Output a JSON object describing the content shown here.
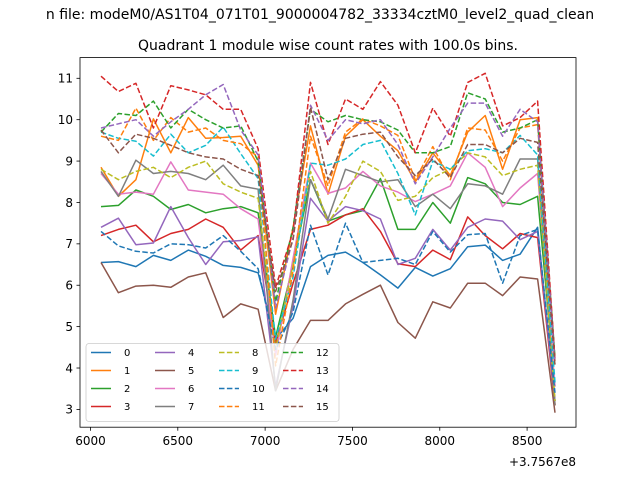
{
  "chart_data": {
    "type": "line",
    "suptitle": "n file: modeM0/AS1T04_071T01_9000004782_33334cztM0_level2_quad_clean",
    "title": "Quadrant 1 module wise count rates with 100.0s bins.",
    "xlabel": "",
    "ylabel": "",
    "x_offset_label": "+3.7567e8",
    "xlim": [
      5940,
      8780
    ],
    "ylim": [
      2.57,
      11.5
    ],
    "xticks": [
      6000,
      6500,
      7000,
      7500,
      8000,
      8500
    ],
    "yticks": [
      3,
      4,
      5,
      6,
      7,
      8,
      9,
      10,
      11
    ],
    "grid": false,
    "legend": {
      "placement": "lower-left",
      "ncol": 4
    },
    "x": [
      6060,
      6160,
      6260,
      6360,
      6460,
      6560,
      6660,
      6760,
      6860,
      6960,
      7060,
      7160,
      7260,
      7360,
      7460,
      7560,
      7660,
      7760,
      7860,
      7960,
      8060,
      8160,
      8260,
      8360,
      8460,
      8560,
      8660
    ],
    "series": [
      {
        "name": "0",
        "color": "#1f77b4",
        "dash": "solid",
        "values": [
          6.55,
          6.57,
          6.45,
          6.72,
          6.6,
          6.85,
          6.7,
          6.48,
          6.43,
          6.3,
          4.7,
          5.2,
          6.45,
          6.72,
          6.8,
          6.55,
          6.25,
          5.93,
          6.43,
          6.22,
          6.4,
          6.93,
          6.97,
          6.6,
          6.75,
          7.4,
          3.2
        ]
      },
      {
        "name": "1",
        "color": "#ff7f0e",
        "dash": "solid",
        "values": [
          8.85,
          8.15,
          8.55,
          10.02,
          9.2,
          10.05,
          9.55,
          9.57,
          9.6,
          8.9,
          5.3,
          7.4,
          9.85,
          8.2,
          9.6,
          10.0,
          9.6,
          9.25,
          8.5,
          9.2,
          8.65,
          9.7,
          10.1,
          8.8,
          10.0,
          10.05,
          3.1
        ]
      },
      {
        "name": "2",
        "color": "#2ca02c",
        "dash": "solid",
        "values": [
          7.9,
          7.93,
          8.3,
          8.15,
          7.83,
          7.95,
          7.75,
          7.85,
          7.9,
          7.75,
          4.75,
          6.5,
          8.55,
          7.55,
          7.7,
          7.8,
          8.58,
          7.35,
          7.35,
          8.0,
          7.5,
          8.6,
          8.45,
          8.0,
          7.95,
          8.15,
          3.55
        ]
      },
      {
        "name": "3",
        "color": "#d62728",
        "dash": "solid",
        "values": [
          7.2,
          7.35,
          7.45,
          7.05,
          7.25,
          7.35,
          7.6,
          7.4,
          6.85,
          7.2,
          4.6,
          6.05,
          7.35,
          7.45,
          7.7,
          7.85,
          7.3,
          6.52,
          6.45,
          6.85,
          6.62,
          7.65,
          7.2,
          6.88,
          7.25,
          7.15,
          3.1
        ]
      },
      {
        "name": "4",
        "color": "#9467bd",
        "dash": "solid",
        "values": [
          7.4,
          7.62,
          6.98,
          7.02,
          7.9,
          7.15,
          6.5,
          7.05,
          7.08,
          7.17,
          3.55,
          5.5,
          8.1,
          7.55,
          7.9,
          7.8,
          7.6,
          6.5,
          6.65,
          7.35,
          6.85,
          7.4,
          7.6,
          7.55,
          7.1,
          7.3,
          3.2
        ]
      },
      {
        "name": "5",
        "color": "#8c564b",
        "dash": "solid",
        "values": [
          6.55,
          5.82,
          5.98,
          6.0,
          5.95,
          6.2,
          6.3,
          5.22,
          5.55,
          5.42,
          3.45,
          4.45,
          5.15,
          5.15,
          5.55,
          5.78,
          6.0,
          5.1,
          4.72,
          5.6,
          5.45,
          6.05,
          6.05,
          5.75,
          6.2,
          6.15,
          2.92
        ]
      },
      {
        "name": "6",
        "color": "#e377c2",
        "dash": "solid",
        "values": [
          8.7,
          8.2,
          8.25,
          8.2,
          8.98,
          8.3,
          8.25,
          8.2,
          7.85,
          7.6,
          4.3,
          6.65,
          8.95,
          8.22,
          8.35,
          8.75,
          8.4,
          8.25,
          8.02,
          8.2,
          8.4,
          9.2,
          8.85,
          7.9,
          8.35,
          8.7,
          3.55
        ]
      },
      {
        "name": "7",
        "color": "#7f7f7f",
        "dash": "solid",
        "values": [
          8.75,
          8.15,
          9.02,
          8.7,
          8.75,
          8.7,
          8.55,
          8.9,
          8.4,
          8.32,
          3.45,
          5.65,
          8.55,
          7.6,
          8.8,
          8.65,
          8.5,
          8.55,
          7.9,
          8.2,
          7.85,
          8.45,
          8.4,
          8.2,
          9.05,
          9.05,
          3.1
        ]
      },
      {
        "name": "8",
        "color": "#bcbd22",
        "dash": "dashed",
        "values": [
          8.8,
          8.55,
          8.75,
          8.85,
          8.6,
          8.85,
          9.0,
          8.45,
          8.25,
          8.1,
          4.45,
          6.5,
          8.75,
          7.5,
          8.15,
          9.0,
          8.75,
          8.05,
          8.15,
          8.6,
          8.8,
          9.2,
          9.1,
          8.65,
          8.8,
          8.9,
          3.2
        ]
      },
      {
        "name": "9",
        "color": "#17becf",
        "dash": "dashed",
        "values": [
          9.7,
          9.55,
          9.48,
          9.12,
          9.65,
          9.2,
          9.38,
          9.82,
          9.18,
          8.58,
          4.7,
          6.2,
          8.95,
          8.9,
          9.05,
          9.4,
          9.5,
          8.7,
          7.7,
          9.0,
          8.8,
          9.25,
          9.3,
          9.2,
          9.62,
          9.15,
          3.65
        ]
      },
      {
        "name": "10",
        "color": "#1f77b4",
        "dash": "dashed",
        "values": [
          7.3,
          6.95,
          6.82,
          6.78,
          7.0,
          6.98,
          6.9,
          7.2,
          6.82,
          6.4,
          4.45,
          5.35,
          7.45,
          6.25,
          7.5,
          6.55,
          6.6,
          6.65,
          6.5,
          7.3,
          6.8,
          7.22,
          7.25,
          6.05,
          7.2,
          7.35,
          3.4
        ]
      },
      {
        "name": "11",
        "color": "#ff7f0e",
        "dash": "dashed",
        "values": [
          9.6,
          9.5,
          10.28,
          9.5,
          10.05,
          9.7,
          9.8,
          9.5,
          9.42,
          9.1,
          4.05,
          6.35,
          9.6,
          8.4,
          9.7,
          10.02,
          9.85,
          9.62,
          8.55,
          9.35,
          8.55,
          9.8,
          9.75,
          9.0,
          9.8,
          9.88,
          4.15
        ]
      },
      {
        "name": "12",
        "color": "#2ca02c",
        "dash": "dashed",
        "values": [
          9.7,
          10.15,
          10.1,
          10.45,
          9.8,
          10.25,
          10.0,
          9.8,
          9.85,
          9.0,
          5.6,
          7.4,
          10.25,
          9.95,
          10.1,
          10.0,
          9.95,
          9.75,
          9.2,
          9.2,
          9.35,
          10.65,
          10.5,
          9.7,
          9.8,
          10.0,
          4.25
        ]
      },
      {
        "name": "13",
        "color": "#d62728",
        "dash": "dashed",
        "values": [
          11.05,
          10.68,
          10.88,
          9.8,
          10.82,
          10.72,
          10.6,
          10.25,
          10.25,
          9.3,
          5.95,
          7.3,
          10.9,
          9.4,
          10.5,
          10.25,
          10.92,
          10.35,
          9.2,
          10.28,
          9.6,
          10.9,
          11.12,
          9.85,
          10.05,
          10.45,
          4.2
        ]
      },
      {
        "name": "14",
        "color": "#9467bd",
        "dash": "dashed",
        "values": [
          9.8,
          9.9,
          10.0,
          9.6,
          9.95,
          10.25,
          10.6,
          10.85,
          9.75,
          9.15,
          5.45,
          7.15,
          10.35,
          9.5,
          10.0,
          9.9,
          10.0,
          9.4,
          8.45,
          9.1,
          9.8,
          10.4,
          10.4,
          9.6,
          10.25,
          9.95,
          4.1
        ]
      },
      {
        "name": "15",
        "color": "#8c564b",
        "dash": "dashed",
        "values": [
          9.75,
          9.2,
          9.65,
          9.55,
          9.38,
          9.2,
          9.1,
          9.05,
          8.8,
          8.65,
          5.85,
          7.1,
          10.3,
          8.55,
          9.55,
          9.65,
          9.7,
          9.1,
          8.65,
          9.05,
          8.6,
          9.4,
          9.4,
          9.2,
          9.55,
          9.45,
          4.05
        ]
      }
    ]
  }
}
